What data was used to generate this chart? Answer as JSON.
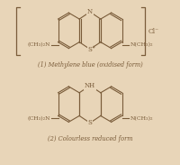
{
  "background_color": "#e8d5b8",
  "line_color": "#7a5c3a",
  "title1": "(1) Methylene blue (oxidised form)",
  "title2": "(2) Colourless reduced form",
  "cl_label": "Cl⁻",
  "label_left1": "(CH₃)₂N",
  "label_right1": "N(CH₃)₂",
  "label_left2": "(CH₃)₂N",
  "label_right2": "N(CH₃)₂",
  "atom_N1": "N",
  "atom_S1": "S",
  "atom_NH2": "NH",
  "atom_S2": "S",
  "s1_plus": "+",
  "fig_width": 2.0,
  "fig_height": 1.83,
  "dpi": 100
}
